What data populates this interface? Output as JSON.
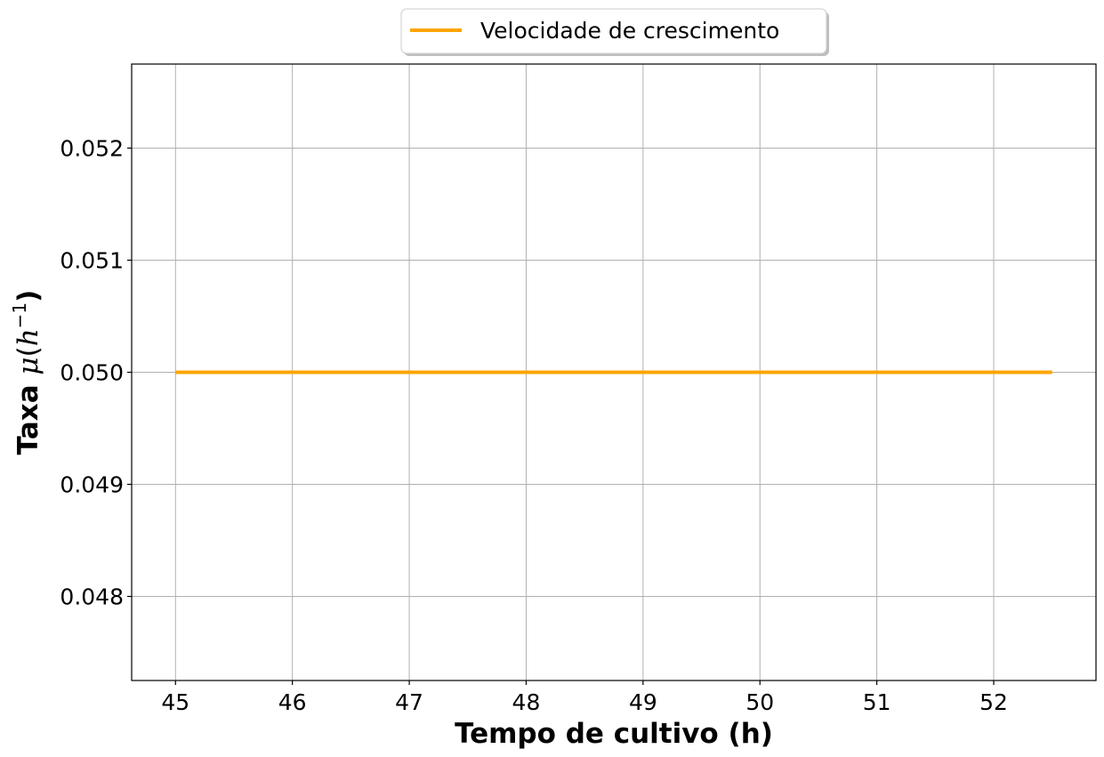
{
  "chart_data": {
    "type": "line",
    "title": "",
    "xlabel": "Tempo de cultivo (h)",
    "ylabel_text": "Taxa ",
    "ylabel_math": {
      "symbol": "μ",
      "open": "(",
      "base": "h",
      "exponent": "−1",
      "close": ")"
    },
    "xlim": [
      44.625,
      52.875
    ],
    "ylim": [
      0.04725,
      0.05275
    ],
    "xticks": [
      45,
      46,
      47,
      48,
      49,
      50,
      51,
      52
    ],
    "xtick_labels": [
      "45",
      "46",
      "47",
      "48",
      "49",
      "50",
      "51",
      "52"
    ],
    "yticks": [
      0.048,
      0.049,
      0.05,
      0.051,
      0.052
    ],
    "ytick_labels": [
      "0.048",
      "0.049",
      "0.050",
      "0.051",
      "0.052"
    ],
    "grid": true,
    "legend_position": "top-center",
    "series": [
      {
        "name": "Velocidade de crescimento",
        "color": "#ffa500",
        "x": [
          45,
          52.5
        ],
        "y": [
          0.05,
          0.05
        ]
      }
    ]
  }
}
